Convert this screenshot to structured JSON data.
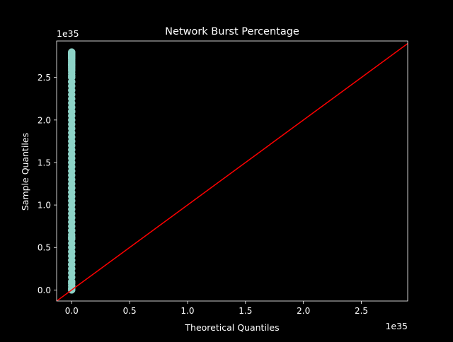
{
  "chart_data": {
    "type": "scatter",
    "title": "Network Burst Percentage",
    "xlabel": "Theoretical Quantiles",
    "ylabel": "Sample Quantiles",
    "x_offset_text": "1e35",
    "y_offset_text": "1e35",
    "xlim": [
      -0.13,
      2.9
    ],
    "ylim": [
      -0.13,
      2.93
    ],
    "x_ticks": [
      0.0,
      0.5,
      1.0,
      1.5,
      2.0,
      2.5
    ],
    "x_tick_labels": [
      "0.0",
      "0.5",
      "1.0",
      "1.5",
      "2.0",
      "2.5"
    ],
    "y_ticks": [
      0.0,
      0.5,
      1.0,
      1.5,
      2.0,
      2.5
    ],
    "y_tick_labels": [
      "0.0",
      "0.5",
      "1.0",
      "1.5",
      "2.0",
      "2.5"
    ],
    "grid": false,
    "colors": {
      "background": "#000000",
      "foreground": "#ffffff",
      "points": "#8dd3c7",
      "reference_line": "#ff0000"
    },
    "series": [
      {
        "type": "scatter",
        "x": [
          0,
          0,
          0,
          0,
          0,
          0,
          0,
          0,
          0,
          0,
          0,
          0,
          0,
          0,
          0,
          0,
          0,
          0,
          0,
          0,
          0,
          0,
          0,
          0,
          0,
          0,
          0,
          0,
          0,
          0,
          0,
          0,
          0,
          0,
          0,
          0,
          0,
          0,
          0,
          0,
          0,
          0,
          0,
          0,
          0,
          0,
          0,
          0,
          0,
          0,
          0,
          0,
          0,
          0,
          0,
          0,
          0,
          0,
          0,
          0,
          0,
          0,
          0,
          0,
          0,
          0,
          0,
          0,
          0,
          0,
          0,
          0,
          0,
          0,
          0,
          0,
          0,
          0,
          0,
          0,
          0
        ],
        "y": [
          0.0,
          0.02,
          0.05,
          0.08,
          0.1,
          0.15,
          0.2,
          0.25,
          0.3,
          0.35,
          0.4,
          0.45,
          0.5,
          0.55,
          0.6,
          0.62,
          0.65,
          0.7,
          0.75,
          0.8,
          0.85,
          0.9,
          0.95,
          1.0,
          1.05,
          1.1,
          1.15,
          1.2,
          1.25,
          1.3,
          1.35,
          1.4,
          1.45,
          1.5,
          1.55,
          1.6,
          1.65,
          1.7,
          1.75,
          1.8,
          1.85,
          1.9,
          1.95,
          2.0,
          2.05,
          2.1,
          2.15,
          2.2,
          2.25,
          2.3,
          2.35,
          2.4,
          2.45,
          2.5,
          2.52,
          2.55,
          2.58,
          2.6,
          2.62,
          2.64,
          2.66,
          2.68,
          2.7,
          2.72,
          2.73,
          2.74,
          2.75,
          2.76,
          2.77,
          2.78,
          2.785,
          2.79,
          2.795,
          2.8,
          0.3,
          0.7,
          1.2,
          1.6,
          2.1,
          2.45,
          2.65
        ]
      },
      {
        "type": "line",
        "x": [
          -0.13,
          2.9
        ],
        "y": [
          -0.13,
          2.9
        ]
      }
    ]
  }
}
